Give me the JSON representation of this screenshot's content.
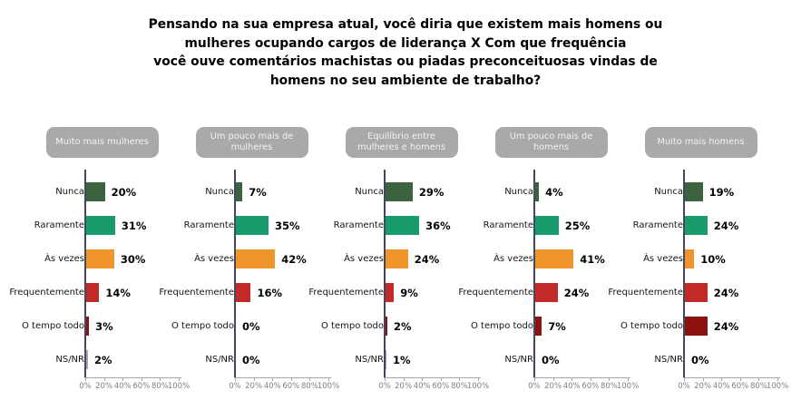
{
  "title": {
    "lines": [
      "Pensando na sua empresa atual, você diria que existem mais homens ou",
      "mulheres ocupando cargos de liderança X Com que frequência",
      "você ouve comentários machistas ou piadas preconceituosas vindas de",
      "homens no seu ambiente de trabalho?"
    ]
  },
  "axis": {
    "ticks": [
      "0%",
      "20%",
      "40%",
      "60%",
      "80%",
      "100%"
    ],
    "tick_values": [
      0,
      20,
      40,
      60,
      80,
      100
    ]
  },
  "colors": {
    "bars": [
      "#3b633f",
      "#199b6c",
      "#f0952b",
      "#c32a27",
      "#8c1111",
      "#a6a6a6"
    ],
    "badge_bg": "#a9a9a9",
    "badge_text": "#f2f2f2",
    "category_axis_line": "#3f4a5f",
    "value_axis_line": "#a6a6a6",
    "tick_label": "#7f7f7f"
  },
  "chart_data": {
    "type": "bar",
    "orientation": "horizontal",
    "value_suffix": "%",
    "xlim": [
      0,
      100
    ],
    "xticks": [
      "0%",
      "20%",
      "40%",
      "60%",
      "80%",
      "100%"
    ],
    "categories": [
      "Nunca",
      "Raramente",
      "Às vezes",
      "Frequentemente",
      "O tempo todo",
      "NS/NR"
    ],
    "panels": [
      {
        "label": "Muito mais mulheres",
        "values": [
          20,
          31,
          30,
          14,
          3,
          2
        ]
      },
      {
        "label": "Um pouco mais de mulheres",
        "values": [
          7,
          35,
          42,
          16,
          0,
          0
        ]
      },
      {
        "label": "Equilíbrio entre mulheres e homens",
        "values": [
          29,
          36,
          24,
          9,
          2,
          1
        ]
      },
      {
        "label": "Um pouco mais de homens",
        "values": [
          4,
          25,
          41,
          24,
          7,
          0
        ]
      },
      {
        "label": "Muito mais homens",
        "values": [
          19,
          24,
          10,
          24,
          24,
          0
        ]
      }
    ]
  }
}
